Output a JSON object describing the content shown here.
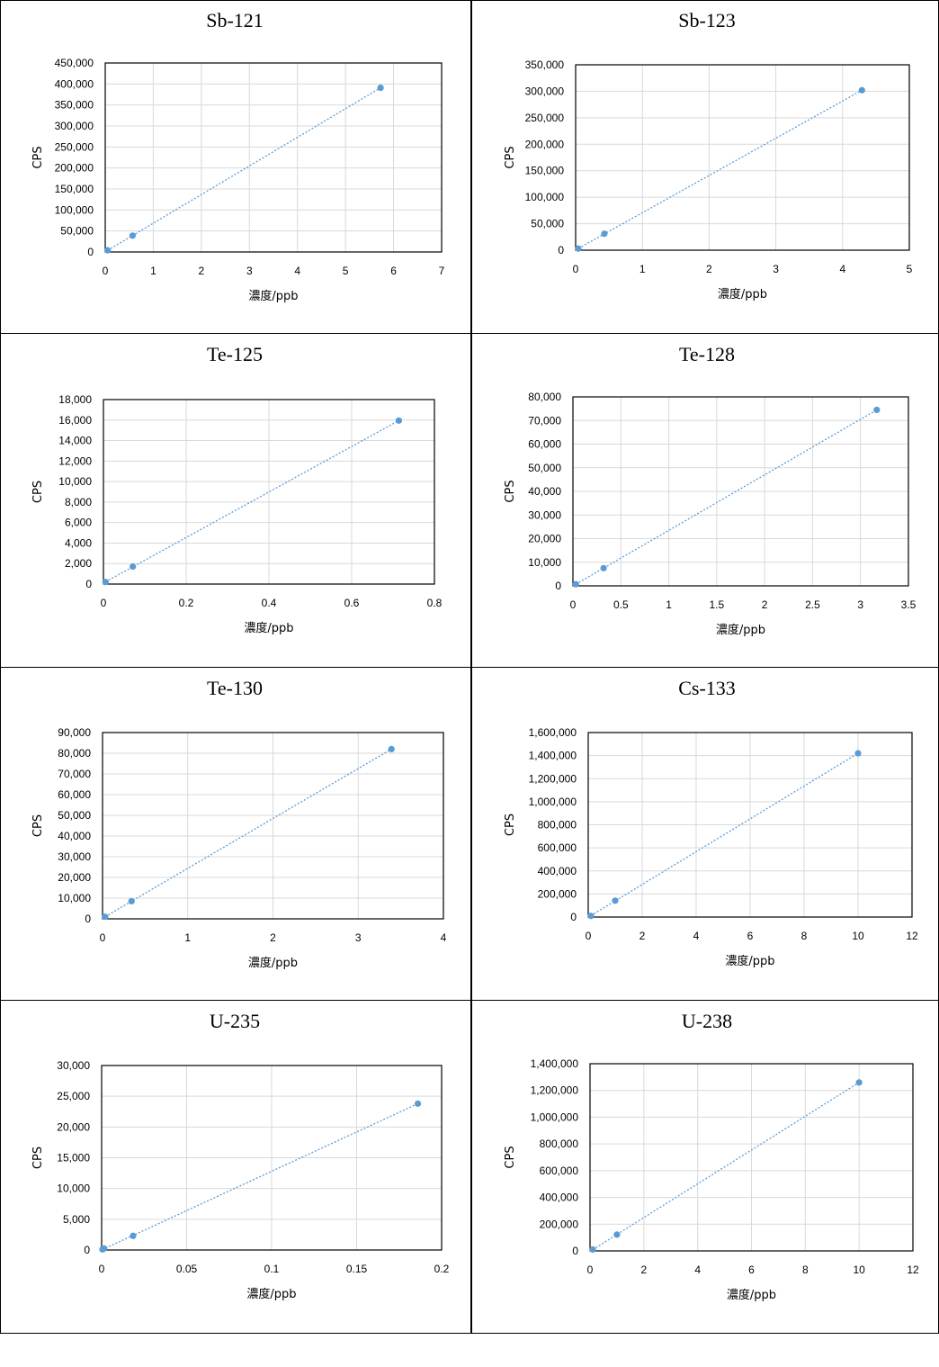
{
  "chart_data": [
    {
      "type": "scatter",
      "title": "Sb-121",
      "xlabel": "濃度/ppb",
      "ylabel": "CPS",
      "xlim": [
        0,
        7
      ],
      "ylim": [
        0,
        450000
      ],
      "x_ticks": [
        "0",
        "1",
        "2",
        "3",
        "4",
        "5",
        "6",
        "7"
      ],
      "y_ticks": [
        "0",
        "50,000",
        "100,000",
        "150,000",
        "200,000",
        "250,000",
        "300,000",
        "350,000",
        "400,000",
        "450,000"
      ],
      "grid": true,
      "points": [
        {
          "x": 0.05,
          "y": 4000
        },
        {
          "x": 0.57,
          "y": 39000
        },
        {
          "x": 5.73,
          "y": 391000
        }
      ],
      "trendline": "dotted linear"
    },
    {
      "type": "scatter",
      "title": "Sb-123",
      "xlabel": "濃度/ppb",
      "ylabel": "CPS",
      "xlim": [
        0,
        5
      ],
      "ylim": [
        0,
        350000
      ],
      "x_ticks": [
        "0",
        "1",
        "2",
        "3",
        "4",
        "5"
      ],
      "y_ticks": [
        "0",
        "50,000",
        "100,000",
        "150,000",
        "200,000",
        "250,000",
        "300,000",
        "350,000"
      ],
      "grid": true,
      "points": [
        {
          "x": 0.04,
          "y": 3000
        },
        {
          "x": 0.43,
          "y": 31000
        },
        {
          "x": 4.29,
          "y": 302000
        }
      ],
      "trendline": "dotted linear"
    },
    {
      "type": "scatter",
      "title": "Te-125",
      "xlabel": "濃度/ppb",
      "ylabel": "CPS",
      "xlim": [
        0,
        0.8
      ],
      "ylim": [
        0,
        18000
      ],
      "x_ticks": [
        "0",
        "0.2",
        "0.4",
        "0.6",
        "0.8"
      ],
      "y_ticks": [
        "0",
        "2,000",
        "4,000",
        "6,000",
        "8,000",
        "10,000",
        "12,000",
        "14,000",
        "16,000",
        "18,000"
      ],
      "grid": true,
      "points": [
        {
          "x": 0.005,
          "y": 200
        },
        {
          "x": 0.071,
          "y": 1700
        },
        {
          "x": 0.714,
          "y": 15950
        }
      ],
      "trendline": "dotted linear"
    },
    {
      "type": "scatter",
      "title": "Te-128",
      "xlabel": "濃度/ppb",
      "ylabel": "CPS",
      "xlim": [
        0,
        3.5
      ],
      "ylim": [
        0,
        80000
      ],
      "x_ticks": [
        "0",
        "0.5",
        "1",
        "1.5",
        "2",
        "2.5",
        "3",
        "3.5"
      ],
      "y_ticks": [
        "0",
        "10,000",
        "20,000",
        "30,000",
        "40,000",
        "50,000",
        "60,000",
        "70,000",
        "80,000"
      ],
      "grid": true,
      "points": [
        {
          "x": 0.03,
          "y": 700
        },
        {
          "x": 0.32,
          "y": 7500
        },
        {
          "x": 3.17,
          "y": 74500
        }
      ],
      "trendline": "dotted linear"
    },
    {
      "type": "scatter",
      "title": "Te-130",
      "xlabel": "濃度/ppb",
      "ylabel": "CPS",
      "xlim": [
        0,
        4
      ],
      "ylim": [
        0,
        90000
      ],
      "x_ticks": [
        "0",
        "1",
        "2",
        "3",
        "4"
      ],
      "y_ticks": [
        "0",
        "10,000",
        "20,000",
        "30,000",
        "40,000",
        "50,000",
        "60,000",
        "70,000",
        "80,000",
        "90,000"
      ],
      "grid": true,
      "points": [
        {
          "x": 0.03,
          "y": 1000
        },
        {
          "x": 0.34,
          "y": 8500
        },
        {
          "x": 3.39,
          "y": 82000
        }
      ],
      "trendline": "dotted linear"
    },
    {
      "type": "scatter",
      "title": "Cs-133",
      "xlabel": "濃度/ppb",
      "ylabel": "CPS",
      "xlim": [
        0,
        12
      ],
      "ylim": [
        0,
        1600000
      ],
      "x_ticks": [
        "0",
        "2",
        "4",
        "6",
        "8",
        "10",
        "12"
      ],
      "y_ticks": [
        "0",
        "200,000",
        "400,000",
        "600,000",
        "800,000",
        "1,000,000",
        "1,200,000",
        "1,400,000",
        "1,600,000"
      ],
      "grid": true,
      "points": [
        {
          "x": 0.1,
          "y": 10000
        },
        {
          "x": 1.0,
          "y": 142000
        },
        {
          "x": 10.0,
          "y": 1420000
        }
      ],
      "trendline": "dotted linear"
    },
    {
      "type": "scatter",
      "title": "U-235",
      "xlabel": "濃度/ppb",
      "ylabel": "CPS",
      "xlim": [
        0,
        0.2
      ],
      "ylim": [
        0,
        30000
      ],
      "x_ticks": [
        "0",
        "0.05",
        "0.1",
        "0.15",
        "0.2"
      ],
      "y_ticks": [
        "0",
        "5,000",
        "10,000",
        "15,000",
        "20,000",
        "25,000",
        "30,000"
      ],
      "grid": true,
      "points": [
        {
          "x": 0.0005,
          "y": 100
        },
        {
          "x": 0.0015,
          "y": 250
        },
        {
          "x": 0.0185,
          "y": 2300
        },
        {
          "x": 0.186,
          "y": 23800
        }
      ],
      "trendline": "dotted linear"
    },
    {
      "type": "scatter",
      "title": "U-238",
      "xlabel": "濃度/ppb",
      "ylabel": "CPS",
      "xlim": [
        0,
        12
      ],
      "ylim": [
        0,
        1400000
      ],
      "x_ticks": [
        "0",
        "2",
        "4",
        "6",
        "8",
        "10",
        "12"
      ],
      "y_ticks": [
        "0",
        "200,000",
        "400,000",
        "600,000",
        "800,000",
        "1,000,000",
        "1,200,000",
        "1,400,000"
      ],
      "grid": true,
      "points": [
        {
          "x": 0.1,
          "y": 10000
        },
        {
          "x": 1.0,
          "y": 122000
        },
        {
          "x": 10.0,
          "y": 1260000
        }
      ],
      "trendline": "dotted linear"
    }
  ]
}
